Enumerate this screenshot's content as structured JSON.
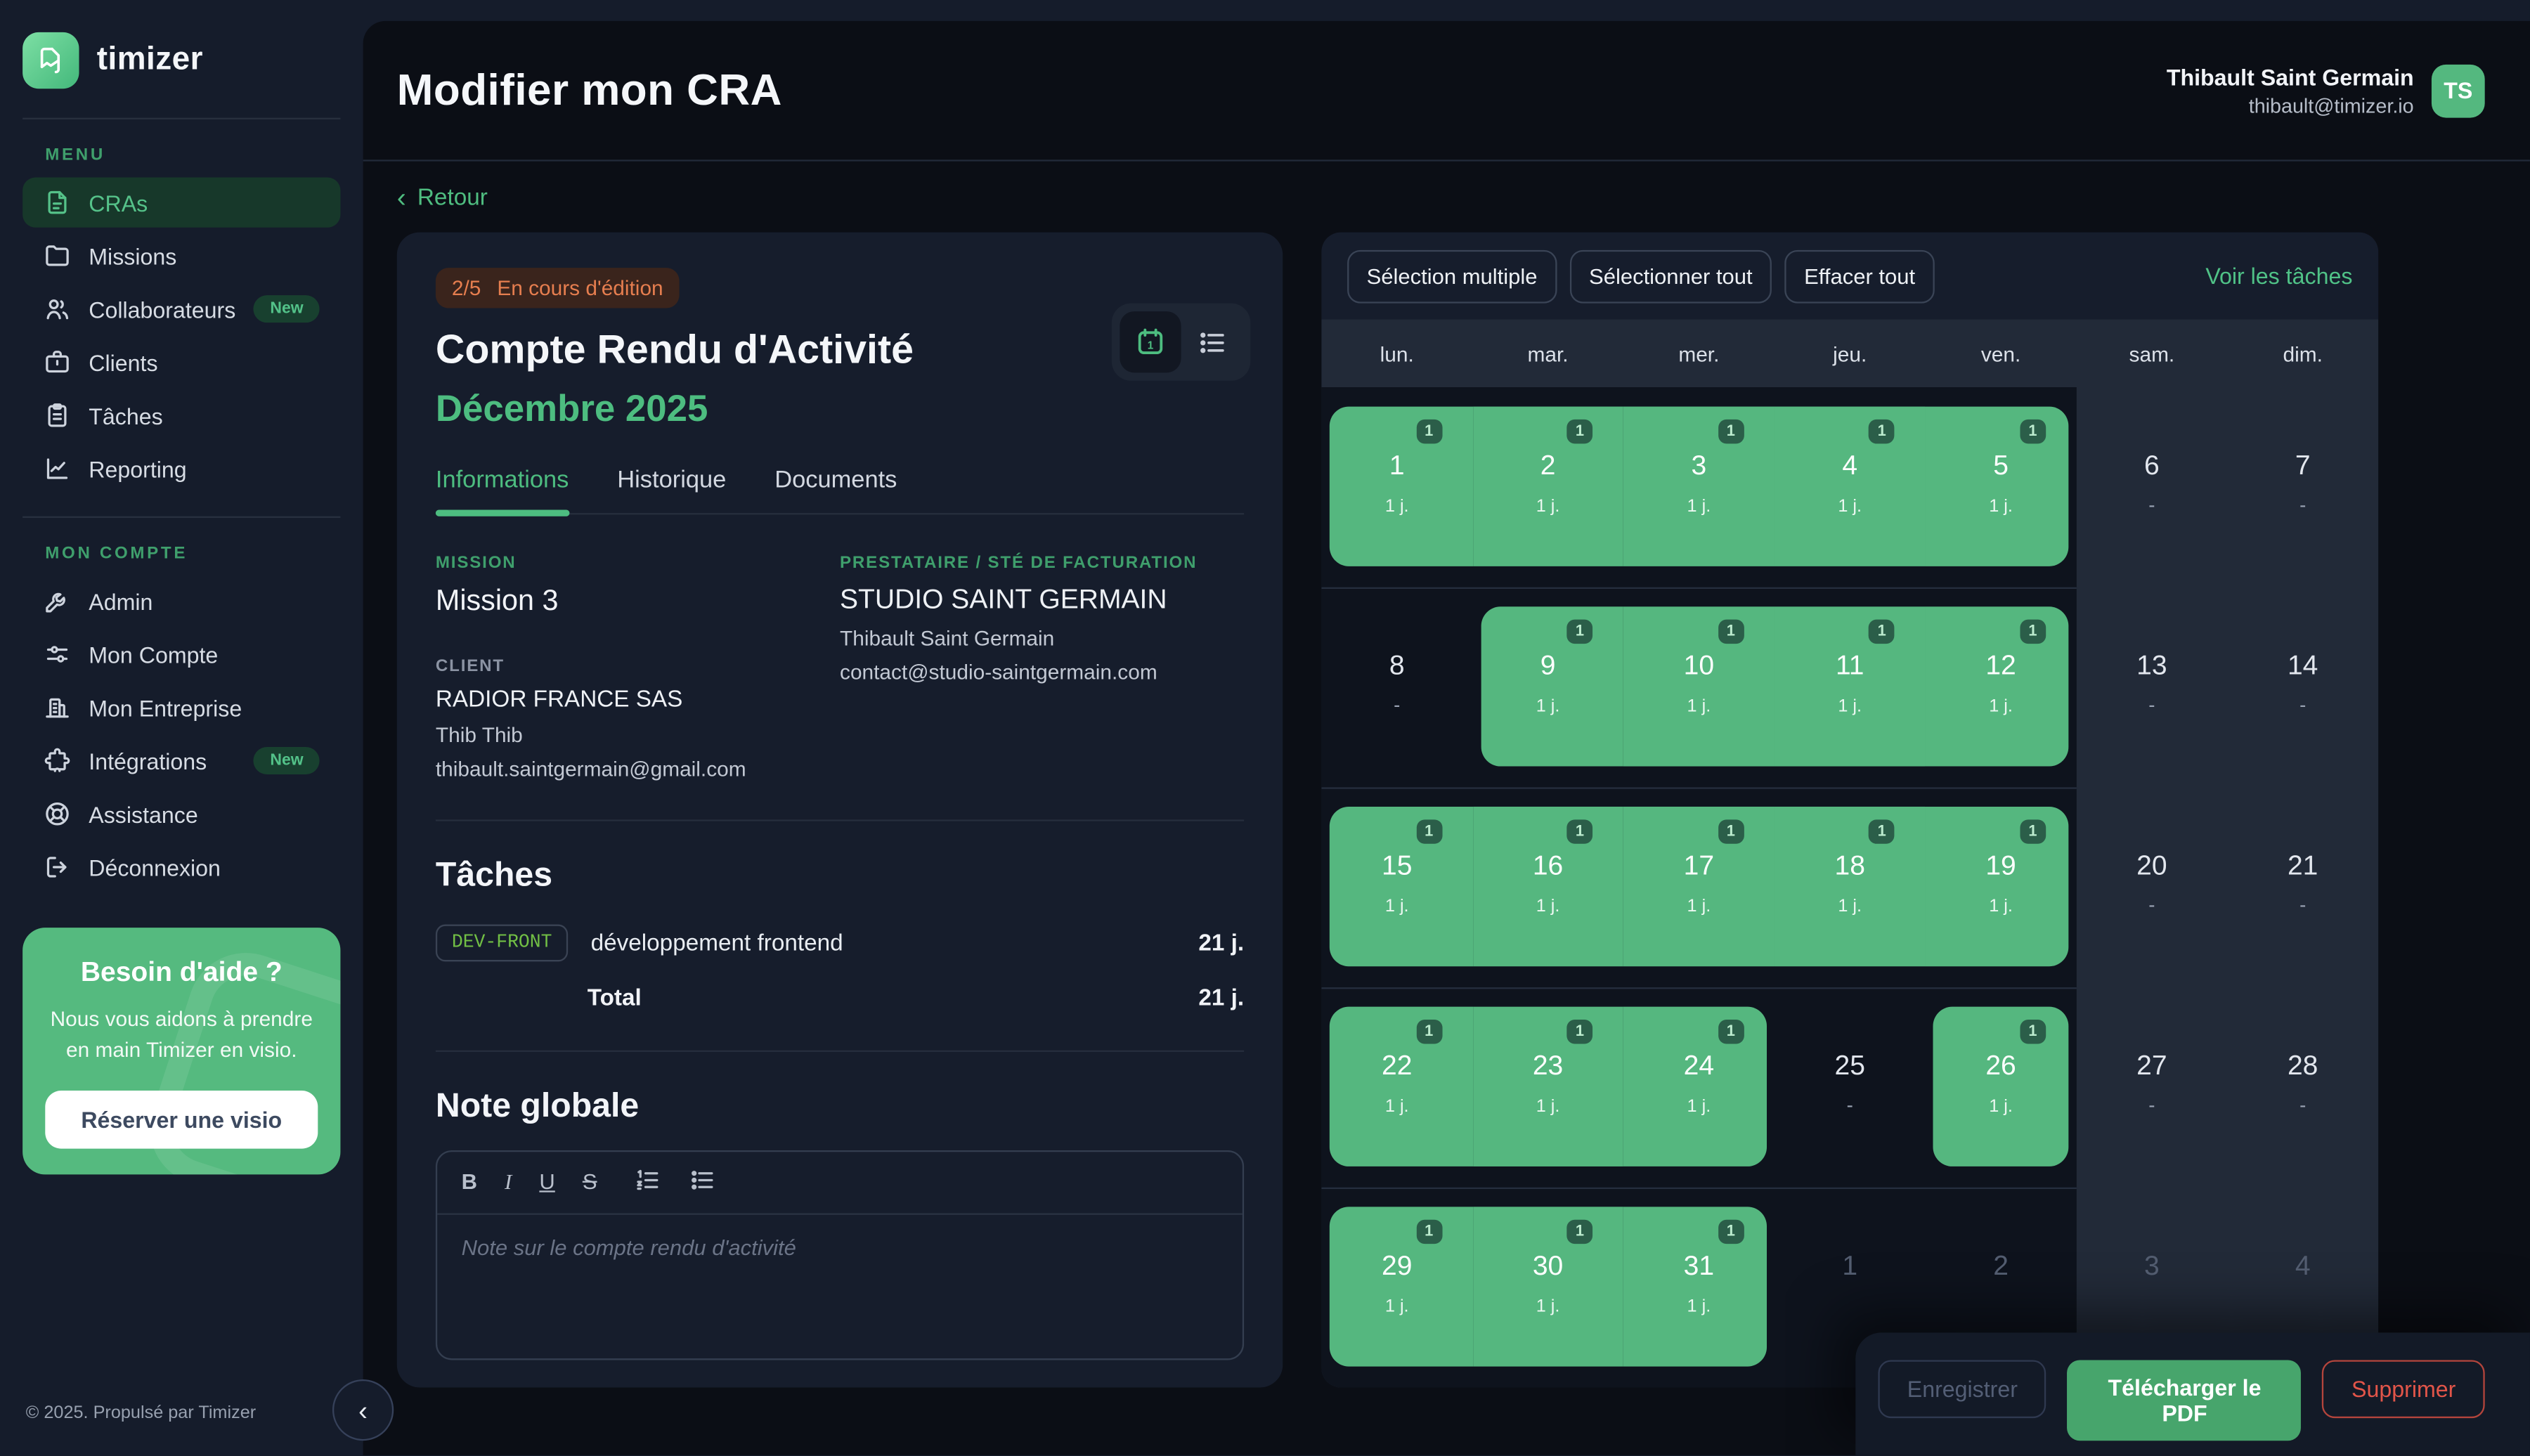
{
  "sidebar": {
    "brand": "timizer",
    "menu_label": "MENU",
    "menu": [
      {
        "label": "CRAs",
        "icon": "document-icon",
        "active": true
      },
      {
        "label": "Missions",
        "icon": "folder-icon"
      },
      {
        "label": "Collaborateurs",
        "icon": "users-icon",
        "badge": "New"
      },
      {
        "label": "Clients",
        "icon": "briefcase-icon"
      },
      {
        "label": "Tâches",
        "icon": "clipboard-icon"
      },
      {
        "label": "Reporting",
        "icon": "chart-icon"
      }
    ],
    "account_label": "MON COMPTE",
    "account": [
      {
        "label": "Admin",
        "icon": "wrench-icon"
      },
      {
        "label": "Mon Compte",
        "icon": "sliders-icon"
      },
      {
        "label": "Mon Entreprise",
        "icon": "building-icon"
      },
      {
        "label": "Intégrations",
        "icon": "puzzle-icon",
        "badge": "New"
      },
      {
        "label": "Assistance",
        "icon": "lifebuoy-icon"
      },
      {
        "label": "Déconnexion",
        "icon": "logout-icon"
      }
    ],
    "help": {
      "title": "Besoin d'aide ?",
      "body": "Nous vous aidons à prendre en main Timizer en visio.",
      "cta": "Réserver une visio"
    },
    "footer": "© 2025. Propulsé par Timizer",
    "collapse_glyph": "‹"
  },
  "header": {
    "title": "Modifier mon CRA",
    "user_name": "Thibault Saint Germain",
    "user_email": "thibault@timizer.io",
    "avatar_initials": "TS"
  },
  "back_link": {
    "chevron": "‹",
    "label": "Retour"
  },
  "cra": {
    "status_badge": {
      "step": "2/5",
      "label": "En cours d'édition"
    },
    "title": "Compte Rendu d'Activité",
    "period": "Décembre 2025",
    "tabs": [
      "Informations",
      "Historique",
      "Documents"
    ],
    "mission": {
      "label": "MISSION",
      "value": "Mission 3"
    },
    "client": {
      "label": "CLIENT",
      "company": "RADIOR FRANCE SAS",
      "contact": "Thib Thib",
      "email": "thibault.saintgermain@gmail.com"
    },
    "provider": {
      "label": "PRESTATAIRE / STÉ DE FACTURATION",
      "company": "STUDIO SAINT GERMAIN",
      "contact": "Thibault Saint Germain",
      "email": "contact@studio-saintgermain.com"
    },
    "tasks": {
      "heading": "Tâches",
      "rows": [
        {
          "code": "DEV-FRONT",
          "name": "développement frontend",
          "days": "21 j."
        }
      ],
      "total_label": "Total",
      "total_days": "21 j."
    },
    "note": {
      "heading": "Note globale",
      "toolbar": {
        "bold": "B",
        "italic": "I",
        "underline": "U",
        "strike": "S"
      },
      "placeholder": "Note sur le compte rendu d'activité"
    }
  },
  "calendar": {
    "toolbar": [
      "Sélection multiple",
      "Sélectionner tout",
      "Effacer tout"
    ],
    "link": "Voir les tâches",
    "weekdays": [
      "lun.",
      "mar.",
      "mer.",
      "jeu.",
      "ven.",
      "sam.",
      "dim."
    ],
    "day_badge": "1",
    "day_value": "1 j.",
    "empty_value": "-",
    "weeks": [
      [
        {
          "d": "1",
          "t": "sel"
        },
        {
          "d": "2",
          "t": "sel"
        },
        {
          "d": "3",
          "t": "sel"
        },
        {
          "d": "4",
          "t": "sel"
        },
        {
          "d": "5",
          "t": "sel"
        },
        {
          "d": "6",
          "t": "off"
        },
        {
          "d": "7",
          "t": "off"
        }
      ],
      [
        {
          "d": "8",
          "t": "off"
        },
        {
          "d": "9",
          "t": "sel"
        },
        {
          "d": "10",
          "t": "sel"
        },
        {
          "d": "11",
          "t": "sel"
        },
        {
          "d": "12",
          "t": "sel"
        },
        {
          "d": "13",
          "t": "off"
        },
        {
          "d": "14",
          "t": "off"
        }
      ],
      [
        {
          "d": "15",
          "t": "sel"
        },
        {
          "d": "16",
          "t": "sel"
        },
        {
          "d": "17",
          "t": "sel"
        },
        {
          "d": "18",
          "t": "sel"
        },
        {
          "d": "19",
          "t": "sel"
        },
        {
          "d": "20",
          "t": "off"
        },
        {
          "d": "21",
          "t": "off"
        }
      ],
      [
        {
          "d": "22",
          "t": "sel"
        },
        {
          "d": "23",
          "t": "sel"
        },
        {
          "d": "24",
          "t": "sel"
        },
        {
          "d": "25",
          "t": "off"
        },
        {
          "d": "26",
          "t": "sel"
        },
        {
          "d": "27",
          "t": "off"
        },
        {
          "d": "28",
          "t": "off"
        }
      ],
      [
        {
          "d": "29",
          "t": "sel"
        },
        {
          "d": "30",
          "t": "sel"
        },
        {
          "d": "31",
          "t": "sel"
        },
        {
          "d": "1",
          "t": "out"
        },
        {
          "d": "2",
          "t": "out"
        },
        {
          "d": "3",
          "t": "out"
        },
        {
          "d": "4",
          "t": "out"
        }
      ]
    ]
  },
  "actions": {
    "save": "Enregistrer",
    "download": "Télécharger le PDF",
    "delete": "Supprimer"
  },
  "colors": {
    "accent_green": "#4dbd80",
    "selected_day": "#55b77f",
    "status_orange": "#e67e4f",
    "danger_red": "#e25549"
  }
}
